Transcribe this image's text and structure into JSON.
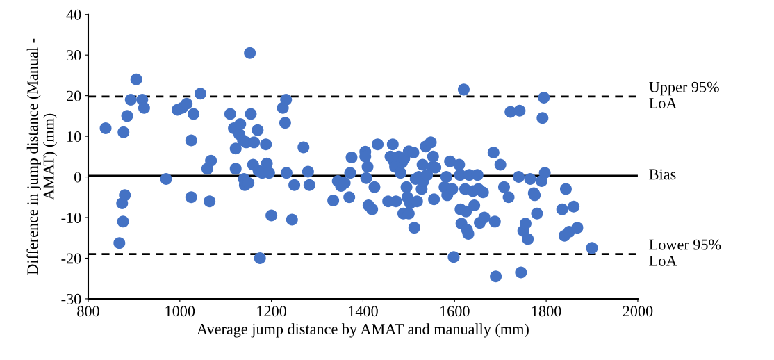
{
  "chart_data": {
    "type": "scatter",
    "xlabel": "Average jump distance by AMAT and manually (mm)",
    "ylabel": "Difference in jump distance (Manual -\nAMAT) (mm)",
    "xlim": [
      800,
      2000
    ],
    "xticks": [
      800,
      1000,
      1200,
      1400,
      1600,
      1800,
      2000
    ],
    "ylim": [
      -30,
      40
    ],
    "yticks": [
      -30,
      -20,
      -10,
      0,
      10,
      20,
      30,
      40
    ],
    "grid": false,
    "marker": "circle",
    "ref_lines": [
      {
        "axis": "y",
        "value": 19.8,
        "label": "Upper 95%\nLoA",
        "line_style": "dashed",
        "color": "#000000"
      },
      {
        "axis": "y",
        "value": 0.3,
        "label": "Bias",
        "line_style": "solid",
        "color": "#000000"
      },
      {
        "axis": "y",
        "value": -19,
        "label": "Lower 95%\nLoA",
        "line_style": "dashed",
        "color": "#000000"
      }
    ],
    "series": [
      {
        "color": "#4472c4",
        "x": [
          838,
          868,
          874,
          876,
          877,
          880,
          885,
          893,
          905,
          918,
          922,
          970,
          995,
          1005,
          1015,
          1025,
          1025,
          1030,
          1045,
          1060,
          1065,
          1068,
          1110,
          1118,
          1122,
          1122,
          1130,
          1132,
          1138,
          1140,
          1142,
          1145,
          1150,
          1153,
          1155,
          1160,
          1162,
          1170,
          1172,
          1175,
          1180,
          1188,
          1190,
          1195,
          1200,
          1225,
          1230,
          1232,
          1233,
          1245,
          1250,
          1270,
          1280,
          1283,
          1335,
          1345,
          1352,
          1360,
          1370,
          1372,
          1375,
          1405,
          1405,
          1407,
          1410,
          1412,
          1420,
          1425,
          1432,
          1455,
          1460,
          1465,
          1467,
          1470,
          1472,
          1478,
          1482,
          1485,
          1488,
          1490,
          1495,
          1497,
          1500,
          1500,
          1503,
          1510,
          1512,
          1515,
          1518,
          1522,
          1528,
          1530,
          1532,
          1537,
          1540,
          1548,
          1552,
          1553,
          1555,
          1558,
          1578,
          1582,
          1584,
          1590,
          1595,
          1598,
          1610,
          1612,
          1613,
          1615,
          1620,
          1623,
          1625,
          1627,
          1630,
          1632,
          1640,
          1643,
          1650,
          1652,
          1655,
          1662,
          1665,
          1685,
          1688,
          1690,
          1700,
          1708,
          1718,
          1722,
          1740,
          1742,
          1745,
          1750,
          1755,
          1760,
          1765,
          1773,
          1775,
          1780,
          1790,
          1792,
          1795,
          1797,
          1835,
          1840,
          1843,
          1850,
          1860,
          1868,
          1900
        ],
        "values": [
          12,
          -16.3,
          -6.5,
          -11,
          11,
          -4.5,
          15,
          19,
          24,
          19,
          17,
          -0.5,
          16.5,
          17,
          18,
          9,
          -5,
          15.5,
          20.5,
          2,
          -6,
          4,
          15.5,
          12,
          7,
          2,
          10.5,
          13,
          9,
          -0.5,
          -2,
          8.5,
          -1.5,
          30.5,
          15.5,
          3,
          8.5,
          11.5,
          1.5,
          -20,
          1,
          8,
          3.3,
          1,
          -9.5,
          17,
          13.3,
          19,
          1,
          -10.5,
          -2,
          7.3,
          1.3,
          -2,
          -5.8,
          -1,
          -2.2,
          -1.5,
          -5,
          1,
          4.8,
          6.2,
          5,
          -0.3,
          2.5,
          -7,
          -8,
          -2.5,
          8,
          -6,
          5,
          8,
          4,
          2.5,
          -6,
          5,
          1,
          3.5,
          -9,
          4.5,
          -2.5,
          -5,
          -9,
          6.3,
          -6.5,
          6,
          -12.5,
          -0.5,
          -6,
          0,
          -3,
          3,
          -1,
          7.5,
          0.5,
          8.5,
          2.5,
          5,
          -5.5,
          2.3,
          -2.5,
          0,
          -4.5,
          3.8,
          -3,
          -19.7,
          3,
          0.5,
          -8,
          -11.5,
          21.5,
          -3,
          -8.5,
          -13,
          -14,
          0.5,
          -3.5,
          -7,
          0.5,
          -3,
          -11.3,
          -3.8,
          -10,
          6,
          -11,
          -24.5,
          3,
          -2.5,
          -5,
          16,
          0,
          16.3,
          -23.5,
          -13.3,
          -11.5,
          -15.3,
          -0.5,
          -4,
          -4.5,
          -9,
          -1,
          14.5,
          19.5,
          1,
          -8,
          -14.5,
          -3,
          -13.5,
          -7.3,
          -12.5,
          -17.5
        ]
      }
    ]
  }
}
